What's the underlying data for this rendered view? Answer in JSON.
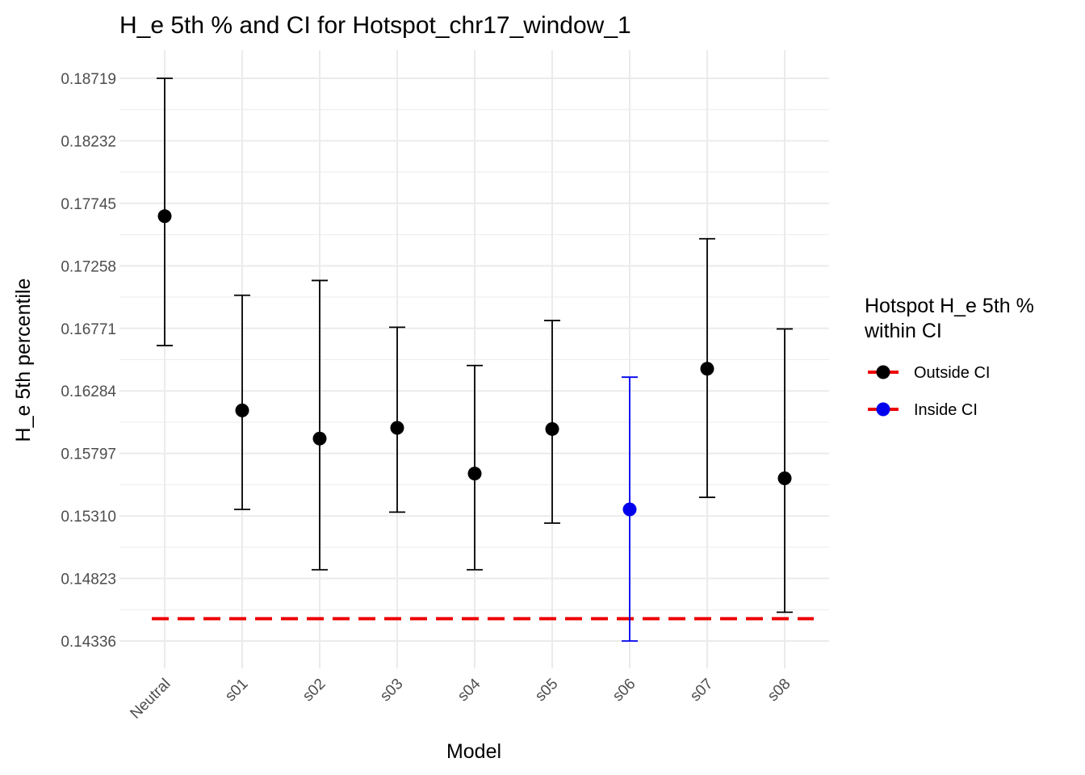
{
  "chart_data": {
    "type": "scatter",
    "title": "H_e 5th % and CI for Hotspot_chr17_window_1",
    "xlabel": "Model",
    "ylabel": "H_e 5th percentile",
    "categories": [
      "Neutral",
      "s01",
      "s02",
      "s03",
      "s04",
      "s05",
      "s06",
      "s07",
      "s08"
    ],
    "y_ticks": [
      0.14336,
      0.14823,
      0.1531,
      0.15797,
      0.16284,
      0.16771,
      0.17258,
      0.17745,
      0.18232,
      0.18719
    ],
    "y_tick_labels": [
      "0.14336",
      "0.14823",
      "0.15310",
      "0.15797",
      "0.16284",
      "0.16771",
      "0.17258",
      "0.17745",
      "0.18232",
      "0.18719"
    ],
    "ylim": [
      0.141,
      0.1895
    ],
    "points": [
      {
        "model": "Neutral",
        "value": 0.17645,
        "ci_low": 0.16637,
        "ci_high": 0.18719,
        "status": "Outside CI"
      },
      {
        "model": "s01",
        "value": 0.16132,
        "ci_low": 0.15361,
        "ci_high": 0.17029,
        "status": "Outside CI"
      },
      {
        "model": "s02",
        "value": 0.15913,
        "ci_low": 0.14891,
        "ci_high": 0.17144,
        "status": "Outside CI"
      },
      {
        "model": "s03",
        "value": 0.15996,
        "ci_low": 0.1534,
        "ci_high": 0.1678,
        "status": "Outside CI"
      },
      {
        "model": "s04",
        "value": 0.1564,
        "ci_low": 0.14891,
        "ci_high": 0.16482,
        "status": "Outside CI"
      },
      {
        "model": "s05",
        "value": 0.15987,
        "ci_low": 0.15254,
        "ci_high": 0.16832,
        "status": "Outside CI"
      },
      {
        "model": "s06",
        "value": 0.15361,
        "ci_low": 0.14336,
        "ci_high": 0.16391,
        "status": "Inside CI"
      },
      {
        "model": "s07",
        "value": 0.16457,
        "ci_low": 0.15455,
        "ci_high": 0.17469,
        "status": "Outside CI"
      },
      {
        "model": "s08",
        "value": 0.15603,
        "ci_low": 0.1456,
        "ci_high": 0.16767,
        "status": "Outside CI"
      }
    ],
    "reference_line": {
      "value": 0.1451,
      "color": "#ee0000",
      "style": "dashed"
    },
    "legend": {
      "title_lines": [
        "Hotspot H_e 5th %",
        "within CI"
      ],
      "placement": "right",
      "entries": [
        {
          "label": "Outside CI",
          "color": "#000000"
        },
        {
          "label": "Inside CI",
          "color": "#0000ee"
        }
      ]
    },
    "colors": {
      "Outside CI": "#000000",
      "Inside CI": "#0000ee",
      "grid": "#ebebeb"
    },
    "grid": true
  }
}
